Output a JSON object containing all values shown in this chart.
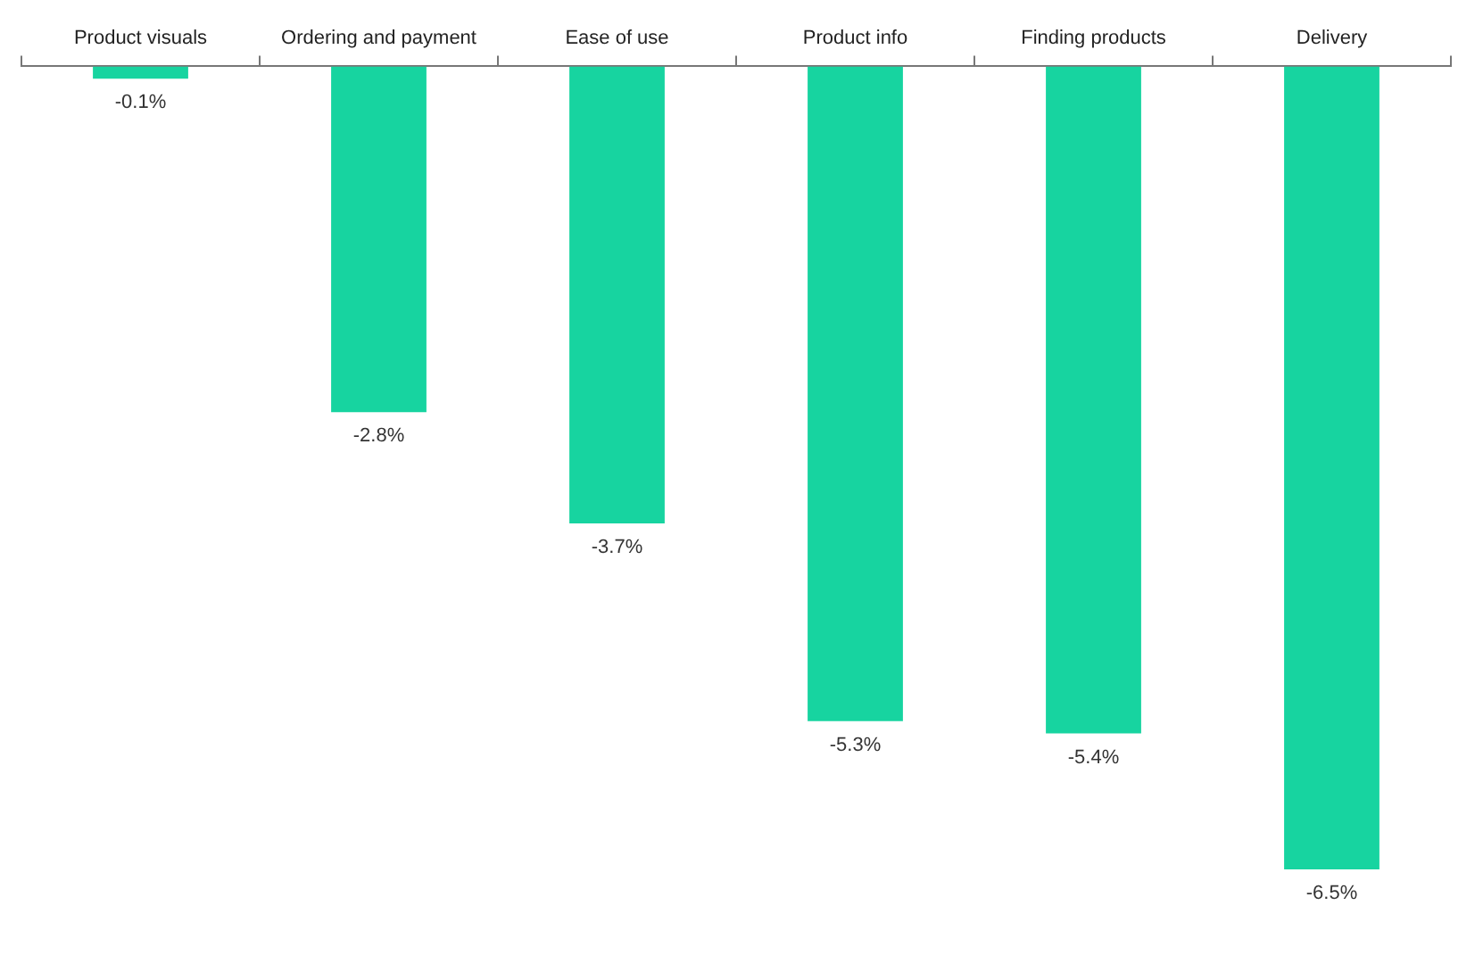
{
  "chart_data": {
    "type": "bar",
    "categories": [
      "Product visuals",
      "Ordering and payment",
      "Ease of use",
      "Product info",
      "Finding products",
      "Delivery"
    ],
    "values": [
      -0.1,
      -2.8,
      -3.7,
      -5.3,
      -5.4,
      -6.5
    ],
    "value_labels": [
      "-0.1%",
      "-2.8%",
      "-3.7%",
      "-5.3%",
      "-5.4%",
      "-6.5%"
    ],
    "color": "#17d4a0",
    "grid": false,
    "legend": false
  }
}
